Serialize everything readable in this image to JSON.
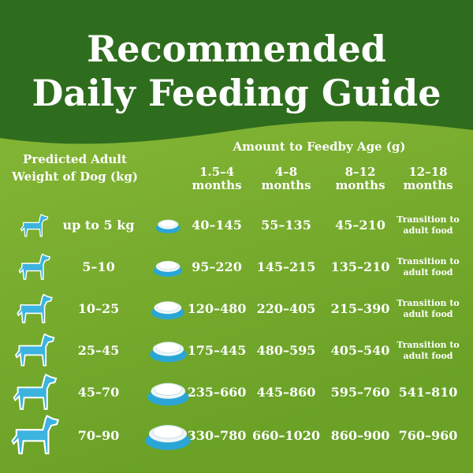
{
  "title": [
    "Recommended",
    "Daily Feeding Guide"
  ],
  "table": {
    "weight_header": "Predicted Adult Weight of Dog (kg)",
    "amount_header": "Amount to Feedby Age (g)",
    "columns": [
      "1.5–4 months",
      "4–8 months",
      "8–12 months",
      "12–18 months"
    ],
    "rows": [
      [
        "up to 5 kg",
        "40–145",
        "55–135",
        "45–210",
        "Transition to adult food"
      ],
      [
        "5–10",
        "95–220",
        "145–215",
        "135–210",
        "Transition to adult food"
      ],
      [
        "10–25",
        "120–480",
        "220–405",
        "215–390",
        "Transition to adult food"
      ],
      [
        "25–45",
        "175–445",
        "480–595",
        "405–540",
        "Transition to adult food"
      ],
      [
        "45–70",
        "235–660",
        "445–860",
        "595–760",
        "541–810"
      ],
      [
        "70–90",
        "330–780",
        "660–1020",
        "860–900",
        "760–960"
      ]
    ]
  }
}
